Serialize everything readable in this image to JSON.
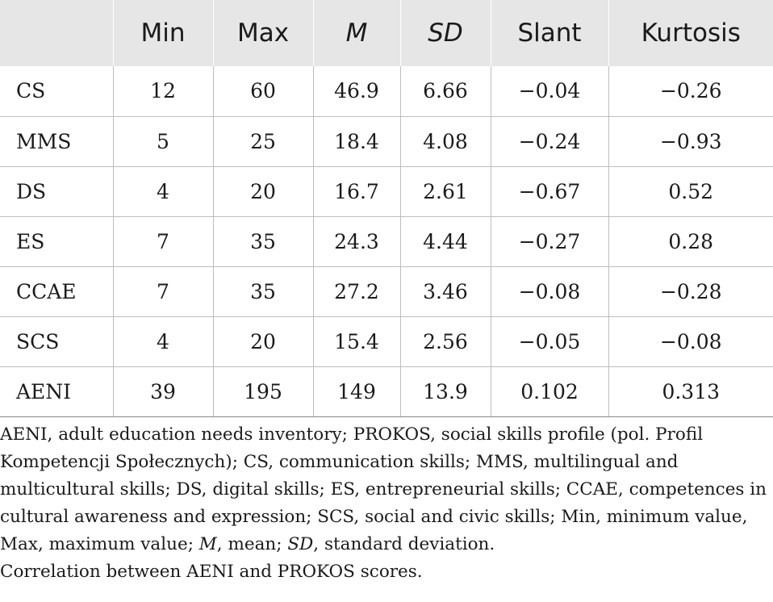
{
  "table": {
    "headers": [
      {
        "label": "",
        "italic": false
      },
      {
        "label": "Min",
        "italic": false
      },
      {
        "label": "Max",
        "italic": false
      },
      {
        "label": "M",
        "italic": true
      },
      {
        "label": "SD",
        "italic": true
      },
      {
        "label": "Slant",
        "italic": false
      },
      {
        "label": "Kurtosis",
        "italic": false
      }
    ],
    "rows": [
      [
        "CS",
        "12",
        "60",
        "46.9",
        "6.66",
        "−0.04",
        "−0.26"
      ],
      [
        "MMS",
        "5",
        "25",
        "18.4",
        "4.08",
        "−0.24",
        "−0.93"
      ],
      [
        "DS",
        "4",
        "20",
        "16.7",
        "2.61",
        "−0.67",
        "0.52"
      ],
      [
        "ES",
        "7",
        "35",
        "24.3",
        "4.44",
        "−0.27",
        "0.28"
      ],
      [
        "CCAE",
        "7",
        "35",
        "27.2",
        "3.46",
        "−0.08",
        "−0.28"
      ],
      [
        "SCS",
        "4",
        "20",
        "15.4",
        "2.56",
        "−0.05",
        "−0.08"
      ],
      [
        "AENI",
        "39",
        "195",
        "149",
        "13.9",
        "0.102",
        "0.313"
      ]
    ]
  },
  "notes": {
    "abbreviations": "AENI, adult education needs inventory; PROKOS, social skills profile (pol. Profil Kompetencji Społecznych); CS, communication skills; MMS, multilingual and multicultural skills; DS, digital skills; ES, entrepreneurial skills; CCAE, competences in cultural awareness and expression; SCS, social and civic skills; Min, minimum value, Max, maximum value; ",
    "mean_abbr": "M",
    "mean_text": ", mean; ",
    "sd_abbr": "SD",
    "sd_text": ", standard deviation.",
    "caption": "Correlation between AENI and PROKOS scores."
  }
}
